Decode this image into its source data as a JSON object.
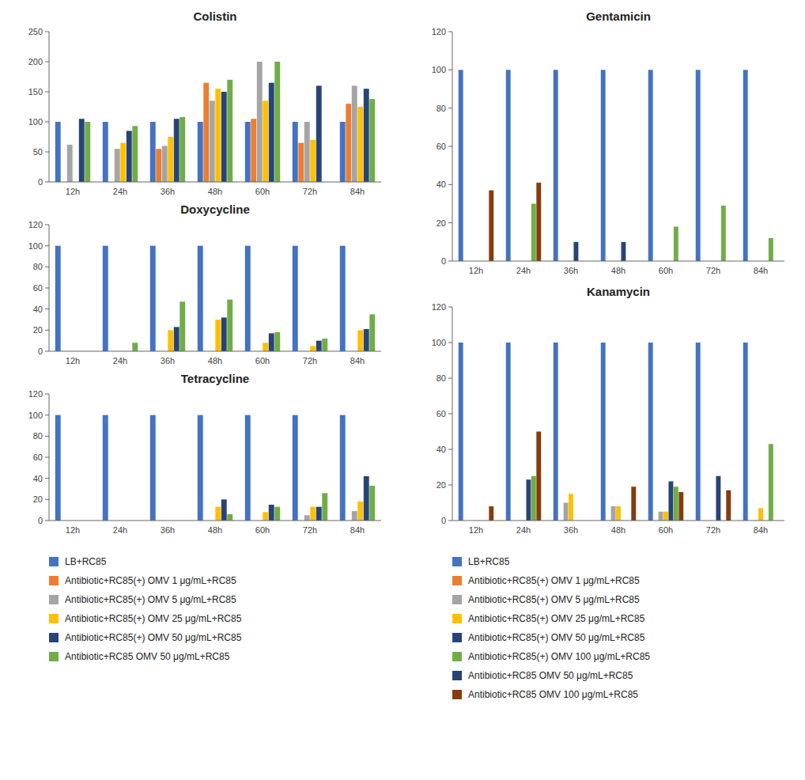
{
  "chart_data": [
    {
      "type": "bar",
      "title": "Colistin",
      "categories": [
        "12h",
        "24h",
        "36h",
        "48h",
        "60h",
        "72h",
        "84h"
      ],
      "ylim": [
        0,
        250
      ],
      "yticks": [
        0,
        50,
        100,
        150,
        200,
        250
      ],
      "grid": false,
      "series": [
        {
          "color": "#4472c4",
          "values": [
            100,
            100,
            100,
            100,
            100,
            100,
            100
          ]
        },
        {
          "color": "#ed7d31",
          "values": [
            0,
            0,
            55,
            165,
            105,
            65,
            130
          ]
        },
        {
          "color": "#a5a5a5",
          "values": [
            62,
            55,
            60,
            135,
            200,
            100,
            160
          ]
        },
        {
          "color": "#ffc000",
          "values": [
            0,
            65,
            75,
            155,
            135,
            70,
            125
          ]
        },
        {
          "color": "#264478",
          "values": [
            105,
            85,
            105,
            150,
            165,
            160,
            155
          ]
        },
        {
          "color": "#70ad47",
          "values": [
            100,
            93,
            108,
            170,
            200,
            0,
            138
          ]
        }
      ]
    },
    {
      "type": "bar",
      "title": "Doxycycline",
      "categories": [
        "12h",
        "24h",
        "36h",
        "48h",
        "60h",
        "72h",
        "84h"
      ],
      "ylim": [
        0,
        120
      ],
      "yticks": [
        0,
        20,
        40,
        60,
        80,
        100,
        120
      ],
      "grid": false,
      "series": [
        {
          "color": "#4472c4",
          "values": [
            100,
            100,
            100,
            100,
            100,
            100,
            100
          ]
        },
        {
          "color": "#ed7d31",
          "values": [
            0,
            0,
            0,
            0,
            0,
            0,
            0
          ]
        },
        {
          "color": "#a5a5a5",
          "values": [
            0,
            0,
            0,
            0,
            0,
            0,
            0
          ]
        },
        {
          "color": "#ffc000",
          "values": [
            0,
            0,
            20,
            30,
            8,
            5,
            20
          ]
        },
        {
          "color": "#264478",
          "values": [
            0,
            0,
            23,
            32,
            17,
            10,
            21
          ]
        },
        {
          "color": "#70ad47",
          "values": [
            0,
            8,
            47,
            49,
            18,
            12,
            35
          ]
        }
      ]
    },
    {
      "type": "bar",
      "title": "Tetracycline",
      "categories": [
        "12h",
        "24h",
        "36h",
        "48h",
        "60h",
        "72h",
        "84h"
      ],
      "ylim": [
        0,
        120
      ],
      "yticks": [
        0,
        20,
        40,
        60,
        80,
        100,
        120
      ],
      "grid": false,
      "series": [
        {
          "name": "LB+RC85",
          "color": "#4472c4",
          "values": [
            100,
            100,
            100,
            100,
            100,
            100,
            100
          ]
        },
        {
          "name": "Antibiotic+RC85(+) OMV 1 μg/mL+RC85",
          "color": "#ed7d31",
          "values": [
            0,
            0,
            0,
            0,
            0,
            0,
            0
          ]
        },
        {
          "name": "Antibiotic+RC85(+) OMV 5 μg/mL+RC85",
          "color": "#a5a5a5",
          "values": [
            0,
            0,
            0,
            0,
            0,
            5,
            9
          ]
        },
        {
          "name": "Antibiotic+RC85(+) OMV 25 μg/mL+RC85",
          "color": "#ffc000",
          "values": [
            0,
            0,
            0,
            13,
            8,
            13,
            18
          ]
        },
        {
          "name": "Antibiotic+RC85(+) OMV 50 μg/mL+RC85",
          "color": "#264478",
          "values": [
            0,
            0,
            0,
            20,
            15,
            13,
            42
          ]
        },
        {
          "name": "Antibiotic+RC85 OMV 50 μg/mL+RC85",
          "color": "#70ad47",
          "values": [
            0,
            0,
            0,
            6,
            13,
            26,
            33
          ]
        }
      ]
    },
    {
      "type": "bar",
      "title": "Gentamicin",
      "categories": [
        "12h",
        "24h",
        "36h",
        "48h",
        "60h",
        "72h",
        "84h"
      ],
      "ylim": [
        0,
        120
      ],
      "yticks": [
        0,
        20,
        40,
        60,
        80,
        100,
        120
      ],
      "grid": false,
      "series": [
        {
          "color": "#4472c4",
          "values": [
            100,
            100,
            100,
            100,
            100,
            100,
            100
          ]
        },
        {
          "color": "#ed7d31",
          "values": [
            0,
            0,
            0,
            0,
            0,
            0,
            0
          ]
        },
        {
          "color": "#a5a5a5",
          "values": [
            0,
            0,
            0,
            0,
            0,
            0,
            0
          ]
        },
        {
          "color": "#ffc000",
          "values": [
            0,
            0,
            0,
            0,
            0,
            0,
            0
          ]
        },
        {
          "color": "#264478",
          "values": [
            0,
            0,
            10,
            10,
            0,
            0,
            0
          ]
        },
        {
          "color": "#70ad47",
          "values": [
            0,
            30,
            0,
            0,
            18,
            29,
            12
          ]
        },
        {
          "color": "#843c0c",
          "values": [
            37,
            41,
            0,
            0,
            0,
            0,
            0
          ]
        }
      ]
    },
    {
      "type": "bar",
      "title": "Kanamycin",
      "categories": [
        "12h",
        "24h",
        "36h",
        "48h",
        "60h",
        "72h",
        "84h"
      ],
      "ylim": [
        0,
        120
      ],
      "yticks": [
        0,
        20,
        40,
        60,
        80,
        100,
        120
      ],
      "grid": false,
      "series": [
        {
          "name": "LB+RC85",
          "color": "#4472c4",
          "values": [
            100,
            100,
            100,
            100,
            100,
            100,
            100
          ]
        },
        {
          "name": "Antibiotic+RC85(+) OMV 1 μg/mL+RC85",
          "color": "#ed7d31",
          "values": [
            0,
            0,
            0,
            0,
            0,
            0,
            0
          ]
        },
        {
          "name": "Antibiotic+RC85(+) OMV 5 μg/mL+RC85",
          "color": "#a5a5a5",
          "values": [
            0,
            0,
            10,
            8,
            5,
            0,
            0
          ]
        },
        {
          "name": "Antibiotic+RC85(+) OMV 25 μg/mL+RC85",
          "color": "#ffc000",
          "values": [
            0,
            0,
            15,
            8,
            5,
            0,
            7
          ]
        },
        {
          "name": "Antibiotic+RC85(+) OMV 50 μg/mL+RC85",
          "color": "#264478",
          "values": [
            0,
            23,
            0,
            0,
            22,
            25,
            0
          ]
        },
        {
          "name": "Antibiotic+RC85(+) OMV 100 μg/mL+RC85",
          "color": "#70ad47",
          "values": [
            0,
            25,
            0,
            0,
            19,
            0,
            43
          ]
        },
        {
          "name": "Antibiotic+RC85 OMV 50 μg/mL+RC85",
          "color": "#264478",
          "values": [
            null,
            null,
            null,
            null,
            null,
            null,
            null
          ]
        },
        {
          "name": "Antibiotic+RC85 OMV 100 μg/mL+RC85",
          "color": "#843c0c",
          "values": [
            8,
            50,
            0,
            19,
            16,
            17,
            0
          ]
        }
      ]
    }
  ]
}
